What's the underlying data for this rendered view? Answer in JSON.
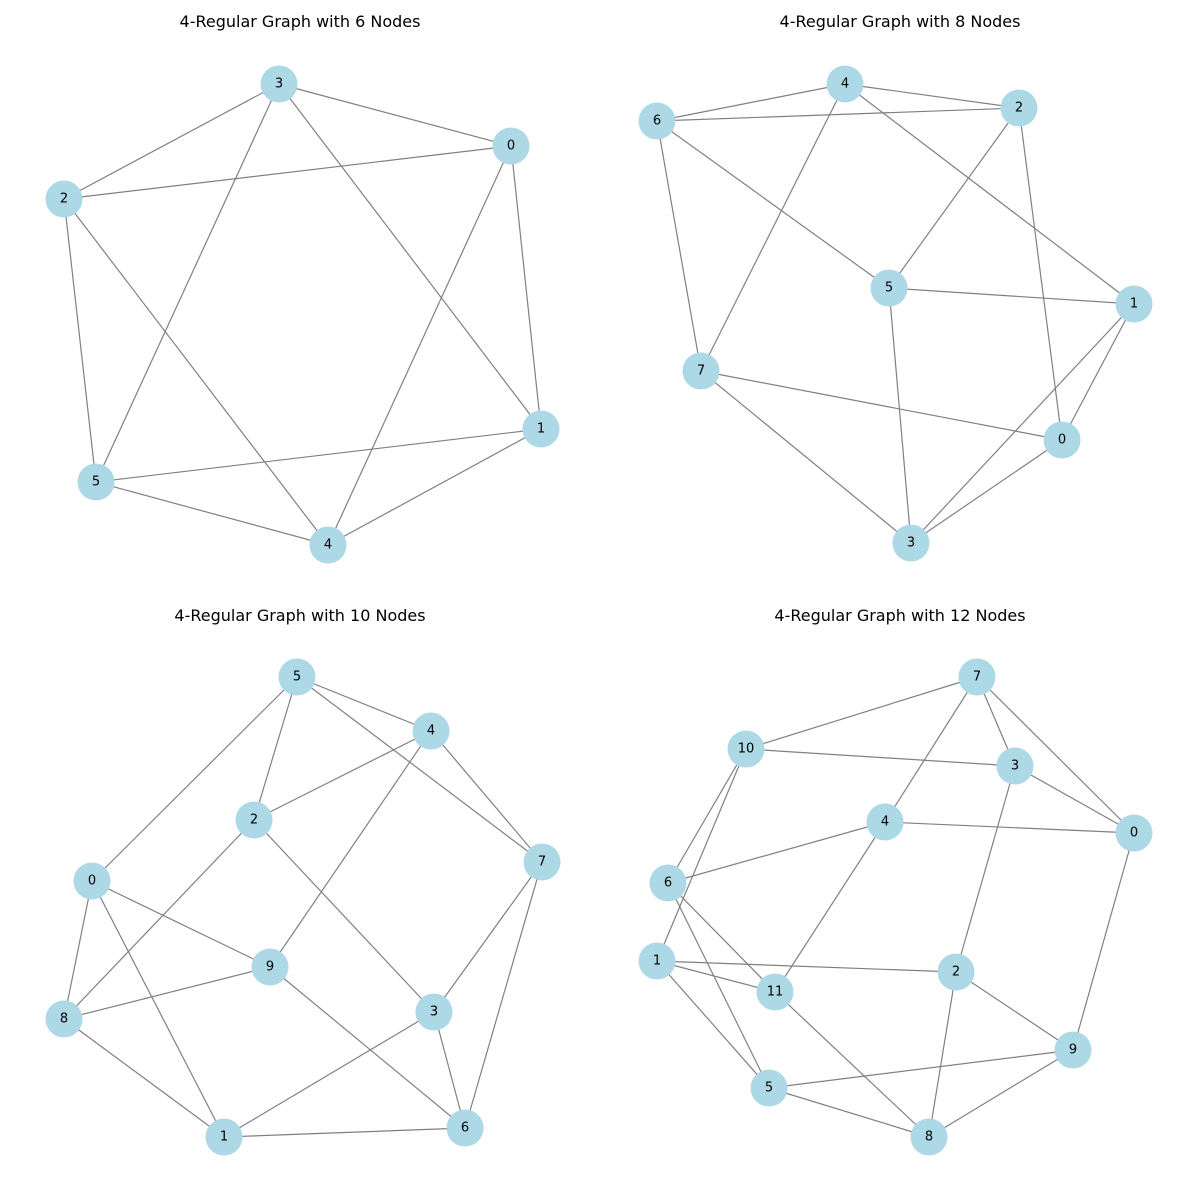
{
  "style": {
    "node_color": "#add8e6",
    "edge_color": "#808080",
    "label_color": "#000000"
  },
  "graphs": [
    {
      "title": "4-Regular Graph with 6 Nodes",
      "nodes": [
        "0",
        "1",
        "2",
        "3",
        "4",
        "5"
      ],
      "edges": [
        [
          "3",
          "0"
        ],
        [
          "3",
          "2"
        ],
        [
          "3",
          "5"
        ],
        [
          "3",
          "1"
        ],
        [
          "0",
          "2"
        ],
        [
          "0",
          "1"
        ],
        [
          "0",
          "4"
        ],
        [
          "2",
          "5"
        ],
        [
          "2",
          "4"
        ],
        [
          "1",
          "5"
        ],
        [
          "1",
          "4"
        ],
        [
          "5",
          "4"
        ]
      ]
    },
    {
      "title": "4-Regular Graph with 8 Nodes",
      "nodes": [
        "0",
        "1",
        "2",
        "3",
        "4",
        "5",
        "6",
        "7"
      ],
      "edges": [
        [
          "4",
          "6"
        ],
        [
          "4",
          "2"
        ],
        [
          "4",
          "7"
        ],
        [
          "4",
          "1"
        ],
        [
          "6",
          "2"
        ],
        [
          "6",
          "5"
        ],
        [
          "6",
          "7"
        ],
        [
          "2",
          "5"
        ],
        [
          "2",
          "0"
        ],
        [
          "5",
          "1"
        ],
        [
          "5",
          "3"
        ],
        [
          "1",
          "0"
        ],
        [
          "1",
          "3"
        ],
        [
          "7",
          "0"
        ],
        [
          "7",
          "3"
        ],
        [
          "0",
          "3"
        ]
      ]
    },
    {
      "title": "4-Regular Graph with 10 Nodes",
      "nodes": [
        "0",
        "1",
        "2",
        "3",
        "4",
        "5",
        "6",
        "7",
        "8",
        "9"
      ],
      "edges": [
        [
          "5",
          "4"
        ],
        [
          "5",
          "2"
        ],
        [
          "5",
          "0"
        ],
        [
          "5",
          "7"
        ],
        [
          "4",
          "2"
        ],
        [
          "4",
          "9"
        ],
        [
          "4",
          "7"
        ],
        [
          "2",
          "8"
        ],
        [
          "2",
          "3"
        ],
        [
          "0",
          "9"
        ],
        [
          "0",
          "8"
        ],
        [
          "0",
          "1"
        ],
        [
          "7",
          "3"
        ],
        [
          "7",
          "6"
        ],
        [
          "9",
          "8"
        ],
        [
          "9",
          "6"
        ],
        [
          "8",
          "1"
        ],
        [
          "3",
          "1"
        ],
        [
          "3",
          "6"
        ],
        [
          "1",
          "6"
        ]
      ]
    },
    {
      "title": "4-Regular Graph with 12 Nodes",
      "nodes": [
        "0",
        "1",
        "2",
        "3",
        "4",
        "5",
        "6",
        "7",
        "8",
        "9",
        "10",
        "11"
      ],
      "edges": [
        [
          "7",
          "10"
        ],
        [
          "7",
          "3"
        ],
        [
          "7",
          "0"
        ],
        [
          "7",
          "4"
        ],
        [
          "10",
          "3"
        ],
        [
          "10",
          "6"
        ],
        [
          "10",
          "1"
        ],
        [
          "3",
          "0"
        ],
        [
          "3",
          "2"
        ],
        [
          "4",
          "0"
        ],
        [
          "4",
          "6"
        ],
        [
          "4",
          "11"
        ],
        [
          "0",
          "9"
        ],
        [
          "6",
          "11"
        ],
        [
          "6",
          "5"
        ],
        [
          "1",
          "2"
        ],
        [
          "1",
          "11"
        ],
        [
          "1",
          "5"
        ],
        [
          "2",
          "9"
        ],
        [
          "2",
          "8"
        ],
        [
          "11",
          "8"
        ],
        [
          "9",
          "5"
        ],
        [
          "9",
          "8"
        ],
        [
          "5",
          "8"
        ]
      ]
    }
  ]
}
